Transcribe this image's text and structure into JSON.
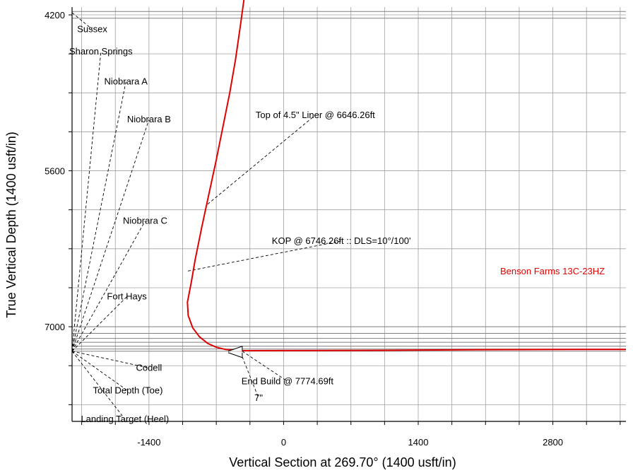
{
  "chart_data": {
    "type": "line",
    "xlabel": "Vertical Section at 269.70° (1400 usft/in)",
    "ylabel": "True Vertical Depth (1400 usft/in)",
    "xlim": [
      -2200,
      3560
    ],
    "ylim": [
      7850,
      4130
    ],
    "y_inverted": true,
    "grid": true,
    "x_ticks": [
      -1400,
      0,
      1400,
      2800
    ],
    "y_ticks": [
      4200,
      5600,
      7000
    ],
    "x_gridlines": [
      -2100,
      -1750,
      -1400,
      -1050,
      -700,
      -350,
      0,
      350,
      700,
      1050,
      1400,
      1750,
      2100,
      2450,
      2800,
      3150,
      3500
    ],
    "y_gridlines": [
      4200,
      4550,
      4900,
      5250,
      5600,
      5950,
      6300,
      6650,
      7000,
      7350,
      7700
    ],
    "horizon_lines": [
      4170,
      4230,
      7000,
      7060,
      7105,
      7140,
      7175,
      7200,
      7220
    ],
    "colors": {
      "well": "#e00000",
      "grid": "#a0a0a0",
      "horizon": "#808080"
    },
    "series": [
      {
        "name": "Benson Farms 13C-23HZ",
        "color": "#e00000",
        "points": [
          [
            -410,
            4050
          ],
          [
            -450,
            4300
          ],
          [
            -500,
            4600
          ],
          [
            -560,
            4900
          ],
          [
            -630,
            5200
          ],
          [
            -700,
            5500
          ],
          [
            -775,
            5800
          ],
          [
            -850,
            6100
          ],
          [
            -920,
            6400
          ],
          [
            -960,
            6600
          ],
          [
            -1000,
            6780
          ],
          [
            -992,
            6900
          ],
          [
            -945,
            7010
          ],
          [
            -875,
            7090
          ],
          [
            -790,
            7150
          ],
          [
            -700,
            7185
          ],
          [
            -600,
            7205
          ],
          [
            -450,
            7215
          ],
          [
            1000,
            7212
          ],
          [
            2000,
            7206
          ],
          [
            3000,
            7204
          ],
          [
            3560,
            7204
          ]
        ]
      }
    ],
    "formation_origin": [
      -2200,
      7220
    ],
    "annotations": [
      {
        "label": "Sussex",
        "anchor": [
          -1990,
          4330
        ],
        "target": [
          -2200,
          4180
        ]
      },
      {
        "label": "Sharon Springs",
        "anchor": [
          -1900,
          4530
        ],
        "target": [
          -2200,
          7220
        ]
      },
      {
        "label": "Niobrara A",
        "anchor": [
          -1640,
          4800
        ],
        "target": [
          -2200,
          7220
        ]
      },
      {
        "label": "Niobrara B",
        "anchor": [
          -1400,
          5140
        ],
        "target": [
          -2200,
          7220
        ]
      },
      {
        "label": "Niobrara C",
        "anchor": [
          -1440,
          6050
        ],
        "target": [
          -2200,
          7220
        ]
      },
      {
        "label": "Fort Hays",
        "anchor": [
          -1630,
          6730
        ],
        "target": [
          -2200,
          7220
        ]
      },
      {
        "label": "Codell",
        "anchor": [
          -1400,
          7370
        ],
        "target": [
          -2200,
          7220
        ]
      },
      {
        "label": "Total Depth (Toe)",
        "anchor": [
          -1620,
          7575
        ],
        "target": [
          -2200,
          7220
        ]
      },
      {
        "label": "Landing Target (Heel)",
        "anchor": [
          -1650,
          7830
        ],
        "target": [
          -2200,
          7220
        ]
      },
      {
        "label": "Top of 4.5\" Liner @ 6646.26ft",
        "anchor": [
          330,
          5100
        ],
        "target": [
          -790,
          5900
        ]
      },
      {
        "label": "KOP @ 6746.26ft :: DLS=10°/100'",
        "anchor": [
          600,
          6230
        ],
        "target": [
          -995,
          6500
        ]
      },
      {
        "label": "End Build @ 7774.69ft",
        "anchor": [
          40,
          7490
        ],
        "target": [
          -430,
          7220
        ]
      },
      {
        "label": "7\"",
        "anchor": [
          -260,
          7640
        ],
        "target": [
          -430,
          7270
        ]
      }
    ],
    "casing_marker": {
      "label": "7\"",
      "x": -430,
      "y": 7220
    }
  }
}
